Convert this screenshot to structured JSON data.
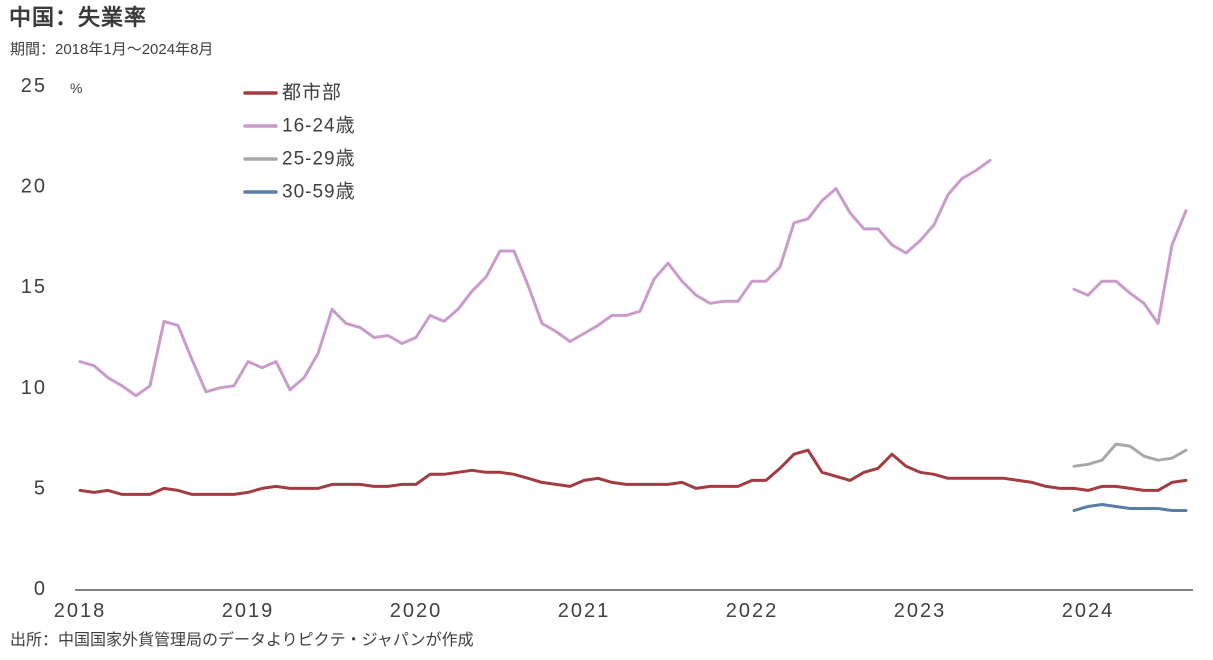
{
  "source": "出所：中国国家外貨管理局のデータよりピクテ・ジャパンが作成",
  "chart_data": {
    "type": "line",
    "title": "中国：失業率",
    "subtitle": "期間：2018年1月～2024年8月",
    "xlabel": "",
    "ylabel": "%",
    "ylim": [
      0,
      25
    ],
    "yticks": [
      0,
      5,
      10,
      15,
      20,
      25
    ],
    "xlim": [
      "2018-01",
      "2024-08"
    ],
    "xticks": [
      "2018",
      "2019",
      "2020",
      "2021",
      "2022",
      "2023",
      "2024"
    ],
    "grid": false,
    "legend": "top-left",
    "x": [
      "2018-01",
      "2018-02",
      "2018-03",
      "2018-04",
      "2018-05",
      "2018-06",
      "2018-07",
      "2018-08",
      "2018-09",
      "2018-10",
      "2018-11",
      "2018-12",
      "2019-01",
      "2019-02",
      "2019-03",
      "2019-04",
      "2019-05",
      "2019-06",
      "2019-07",
      "2019-08",
      "2019-09",
      "2019-10",
      "2019-11",
      "2019-12",
      "2020-01",
      "2020-02",
      "2020-03",
      "2020-04",
      "2020-05",
      "2020-06",
      "2020-07",
      "2020-08",
      "2020-09",
      "2020-10",
      "2020-11",
      "2020-12",
      "2021-01",
      "2021-02",
      "2021-03",
      "2021-04",
      "2021-05",
      "2021-06",
      "2021-07",
      "2021-08",
      "2021-09",
      "2021-10",
      "2021-11",
      "2021-12",
      "2022-01",
      "2022-02",
      "2022-03",
      "2022-04",
      "2022-05",
      "2022-06",
      "2022-07",
      "2022-08",
      "2022-09",
      "2022-10",
      "2022-11",
      "2022-12",
      "2023-01",
      "2023-02",
      "2023-03",
      "2023-04",
      "2023-05",
      "2023-06",
      "2023-07",
      "2023-08",
      "2023-09",
      "2023-10",
      "2023-11",
      "2023-12",
      "2024-01",
      "2024-02",
      "2024-03",
      "2024-04",
      "2024-05",
      "2024-06",
      "2024-07",
      "2024-08"
    ],
    "series": [
      {
        "name": "都市部",
        "color": "#a33c40",
        "values": [
          4.9,
          4.8,
          4.9,
          4.7,
          4.7,
          4.7,
          5.0,
          4.9,
          4.7,
          4.7,
          4.7,
          4.7,
          4.8,
          5.0,
          5.1,
          5.0,
          5.0,
          5.0,
          5.2,
          5.2,
          5.2,
          5.1,
          5.1,
          5.2,
          5.2,
          5.7,
          5.7,
          5.8,
          5.9,
          5.8,
          5.8,
          5.7,
          5.5,
          5.3,
          5.2,
          5.1,
          5.4,
          5.5,
          5.3,
          5.2,
          5.2,
          5.2,
          5.2,
          5.3,
          5.0,
          5.1,
          5.1,
          5.1,
          5.4,
          5.4,
          6.0,
          6.7,
          6.9,
          5.8,
          5.6,
          5.4,
          5.8,
          6.0,
          6.7,
          6.1,
          5.8,
          5.7,
          5.5,
          5.5,
          5.5,
          5.5,
          5.5,
          5.4,
          5.3,
          5.1,
          5.0,
          5.0,
          4.9,
          5.1,
          5.1,
          5.0,
          4.9,
          4.9,
          5.3,
          5.4
        ]
      },
      {
        "name": "16-24歳",
        "color": "#c99ccb",
        "values": [
          11.3,
          11.1,
          10.5,
          10.1,
          9.6,
          10.1,
          13.3,
          13.1,
          11.4,
          9.8,
          10.0,
          10.1,
          11.3,
          11.0,
          11.3,
          9.9,
          10.5,
          11.7,
          13.9,
          13.2,
          13.0,
          12.5,
          12.6,
          12.2,
          12.5,
          13.6,
          13.3,
          13.9,
          14.8,
          15.5,
          16.8,
          16.8,
          15.1,
          13.2,
          12.8,
          12.3,
          12.7,
          13.1,
          13.6,
          13.6,
          13.8,
          15.4,
          16.2,
          15.3,
          14.6,
          14.2,
          14.3,
          14.3,
          15.3,
          15.3,
          16.0,
          18.2,
          18.4,
          19.3,
          19.9,
          18.7,
          17.9,
          17.9,
          17.1,
          16.7,
          17.3,
          18.1,
          19.6,
          20.4,
          20.8,
          21.3,
          null,
          null,
          null,
          null,
          null,
          14.9,
          14.6,
          15.3,
          15.3,
          14.7,
          14.2,
          13.2,
          17.1,
          18.8
        ]
      },
      {
        "name": "25-29歳",
        "color": "#a8a8a8",
        "values": [
          null,
          null,
          null,
          null,
          null,
          null,
          null,
          null,
          null,
          null,
          null,
          null,
          null,
          null,
          null,
          null,
          null,
          null,
          null,
          null,
          null,
          null,
          null,
          null,
          null,
          null,
          null,
          null,
          null,
          null,
          null,
          null,
          null,
          null,
          null,
          null,
          null,
          null,
          null,
          null,
          null,
          null,
          null,
          null,
          null,
          null,
          null,
          null,
          null,
          null,
          null,
          null,
          null,
          null,
          null,
          null,
          null,
          null,
          null,
          null,
          null,
          null,
          null,
          null,
          null,
          null,
          null,
          null,
          null,
          null,
          null,
          6.1,
          6.2,
          6.4,
          7.2,
          7.1,
          6.6,
          6.4,
          6.5,
          6.9
        ]
      },
      {
        "name": "30-59歳",
        "color": "#5b7ea6",
        "values": [
          null,
          null,
          null,
          null,
          null,
          null,
          null,
          null,
          null,
          null,
          null,
          null,
          null,
          null,
          null,
          null,
          null,
          null,
          null,
          null,
          null,
          null,
          null,
          null,
          null,
          null,
          null,
          null,
          null,
          null,
          null,
          null,
          null,
          null,
          null,
          null,
          null,
          null,
          null,
          null,
          null,
          null,
          null,
          null,
          null,
          null,
          null,
          null,
          null,
          null,
          null,
          null,
          null,
          null,
          null,
          null,
          null,
          null,
          null,
          null,
          null,
          null,
          null,
          null,
          null,
          null,
          null,
          null,
          null,
          null,
          null,
          3.9,
          4.1,
          4.2,
          4.1,
          4.0,
          4.0,
          4.0,
          3.9,
          3.9
        ]
      }
    ]
  }
}
